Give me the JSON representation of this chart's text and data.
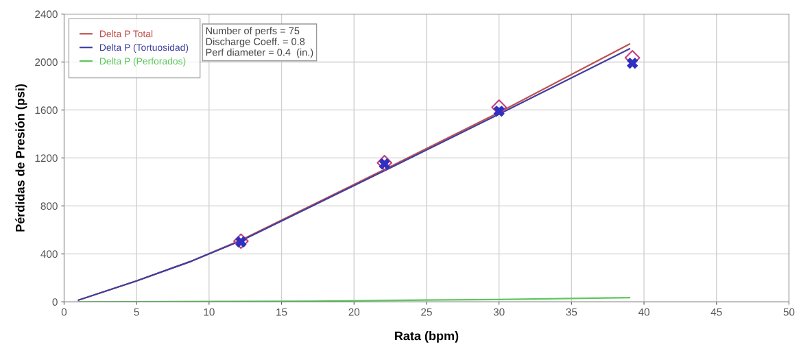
{
  "chart_data": {
    "type": "line",
    "xlabel": "Rata (bpm)",
    "ylabel": "Pérdidas de Presión (psi)",
    "xlim": [
      0,
      50
    ],
    "xticks": [
      0,
      5,
      10,
      15,
      20,
      25,
      30,
      35,
      40,
      45,
      50
    ],
    "ylim": [
      0,
      2400
    ],
    "yticks": [
      0,
      400,
      800,
      1200,
      1600,
      2000,
      2400
    ],
    "grid": true,
    "legend": "top left",
    "marker": "none",
    "line_style": "solid",
    "annotations": [
      "Number of perfs = 75\nDischarge Coeff. = 0.8\nPerf diameter = 0.4  (in.)"
    ],
    "series": [
      {
        "name": "Delta P Total",
        "color": "#c0504d",
        "x": [
          1,
          5,
          8.8,
          12.3,
          22.2,
          30,
          39
        ],
        "values": [
          15,
          175,
          340,
          520,
          1110,
          1580,
          2150
        ]
      },
      {
        "name": "Delta P (Tortuosidad)",
        "color": "#3f3fa0",
        "x": [
          1,
          5,
          8.8,
          12.3,
          22.2,
          30,
          39
        ],
        "values": [
          15,
          175,
          340,
          515,
          1100,
          1565,
          2110
        ]
      },
      {
        "name": "Delta P (Perforados)",
        "color": "#5cc85c",
        "x": [
          1,
          17,
          25,
          30,
          39
        ],
        "values": [
          0,
          5,
          15,
          20,
          35
        ]
      },
      {
        "type": "scatter",
        "marker": "diamond",
        "color": "#c04080",
        "x": [
          12.2,
          22.1,
          30,
          39.2
        ],
        "values": [
          506,
          1160,
          1623,
          2035
        ]
      },
      {
        "type": "scatter",
        "marker": "cross",
        "color": "#3030c0",
        "x": [
          12.2,
          22.1,
          30,
          39.2
        ],
        "values": [
          500,
          1150,
          1590,
          1990
        ]
      }
    ]
  }
}
